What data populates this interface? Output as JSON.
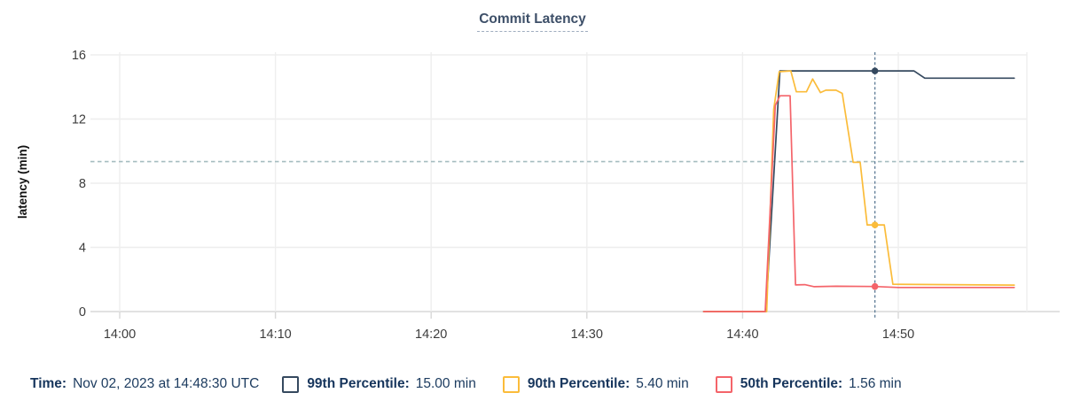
{
  "title": "Commit Latency",
  "colors": {
    "p99_line": "#35495f",
    "p90_line": "#fbbc3a",
    "p50_line": "#f4646a",
    "cursor_line": "#5d7a96",
    "threshold_line": "#a5bcc0",
    "gridline": "#eeeeee",
    "axis_line": "#d8d8d8",
    "tick_text": "#3d3d3d",
    "navy_text": "#16355c"
  },
  "chart_data": {
    "type": "line",
    "title": "Commit Latency",
    "xlabel": "",
    "ylabel": "latency (min)",
    "ylim": [
      0,
      16.4
    ],
    "yticks": [
      0,
      4,
      8,
      12,
      16
    ],
    "x_unit": "minutes after 14:00",
    "xticks": [
      {
        "t": 0,
        "label": "14:00"
      },
      {
        "t": 10,
        "label": "14:10"
      },
      {
        "t": 20,
        "label": "14:20"
      },
      {
        "t": 30,
        "label": "14:30"
      },
      {
        "t": 40,
        "label": "14:40"
      },
      {
        "t": 50,
        "label": "14:50"
      }
    ],
    "grid": true,
    "threshold_value": 9.35,
    "cursor_time_minutes": 48.5,
    "cursor_time_label": "Nov 02, 2023 at 14:48:30 UTC",
    "data_time_range_minutes": [
      37.5,
      57.45
    ],
    "series": [
      {
        "name": "99th Percentile",
        "color": "#35495f",
        "cursor_value": 15.0,
        "points": [
          [
            37.5,
            0
          ],
          [
            41.5,
            0
          ],
          [
            42.4,
            15.0
          ],
          [
            51.0,
            15.0
          ],
          [
            51.7,
            14.55
          ],
          [
            57.45,
            14.55
          ]
        ]
      },
      {
        "name": "90th Percentile",
        "color": "#fbbc3a",
        "cursor_value": 5.4,
        "points": [
          [
            37.5,
            0
          ],
          [
            41.55,
            0
          ],
          [
            42.0,
            12.6
          ],
          [
            42.35,
            14.95
          ],
          [
            43.1,
            15.0
          ],
          [
            43.45,
            13.7
          ],
          [
            44.1,
            13.7
          ],
          [
            44.5,
            14.5
          ],
          [
            45.0,
            13.65
          ],
          [
            45.35,
            13.8
          ],
          [
            46.0,
            13.8
          ],
          [
            46.4,
            13.6
          ],
          [
            47.1,
            9.3
          ],
          [
            47.55,
            9.3
          ],
          [
            48.0,
            5.4
          ],
          [
            49.1,
            5.4
          ],
          [
            49.65,
            1.7
          ],
          [
            57.45,
            1.65
          ]
        ]
      },
      {
        "name": "50th Percentile",
        "color": "#f4646a",
        "cursor_value": 1.56,
        "points": [
          [
            37.5,
            0
          ],
          [
            41.45,
            0
          ],
          [
            42.1,
            12.85
          ],
          [
            42.4,
            13.45
          ],
          [
            43.05,
            13.45
          ],
          [
            43.4,
            1.66
          ],
          [
            44.0,
            1.68
          ],
          [
            44.6,
            1.55
          ],
          [
            46.0,
            1.58
          ],
          [
            48.5,
            1.56
          ],
          [
            50.0,
            1.5
          ],
          [
            57.45,
            1.5
          ]
        ]
      }
    ]
  },
  "legend": {
    "time_label": "Time:",
    "time_value": "Nov 02, 2023 at 14:48:30 UTC",
    "items": [
      {
        "label": "99th Percentile:",
        "value": "15.00 min",
        "color": "#35495f"
      },
      {
        "label": "90th Percentile:",
        "value": "5.40 min",
        "color": "#fbbc3a"
      },
      {
        "label": "50th Percentile:",
        "value": "1.56 min",
        "color": "#f4646a"
      }
    ]
  }
}
